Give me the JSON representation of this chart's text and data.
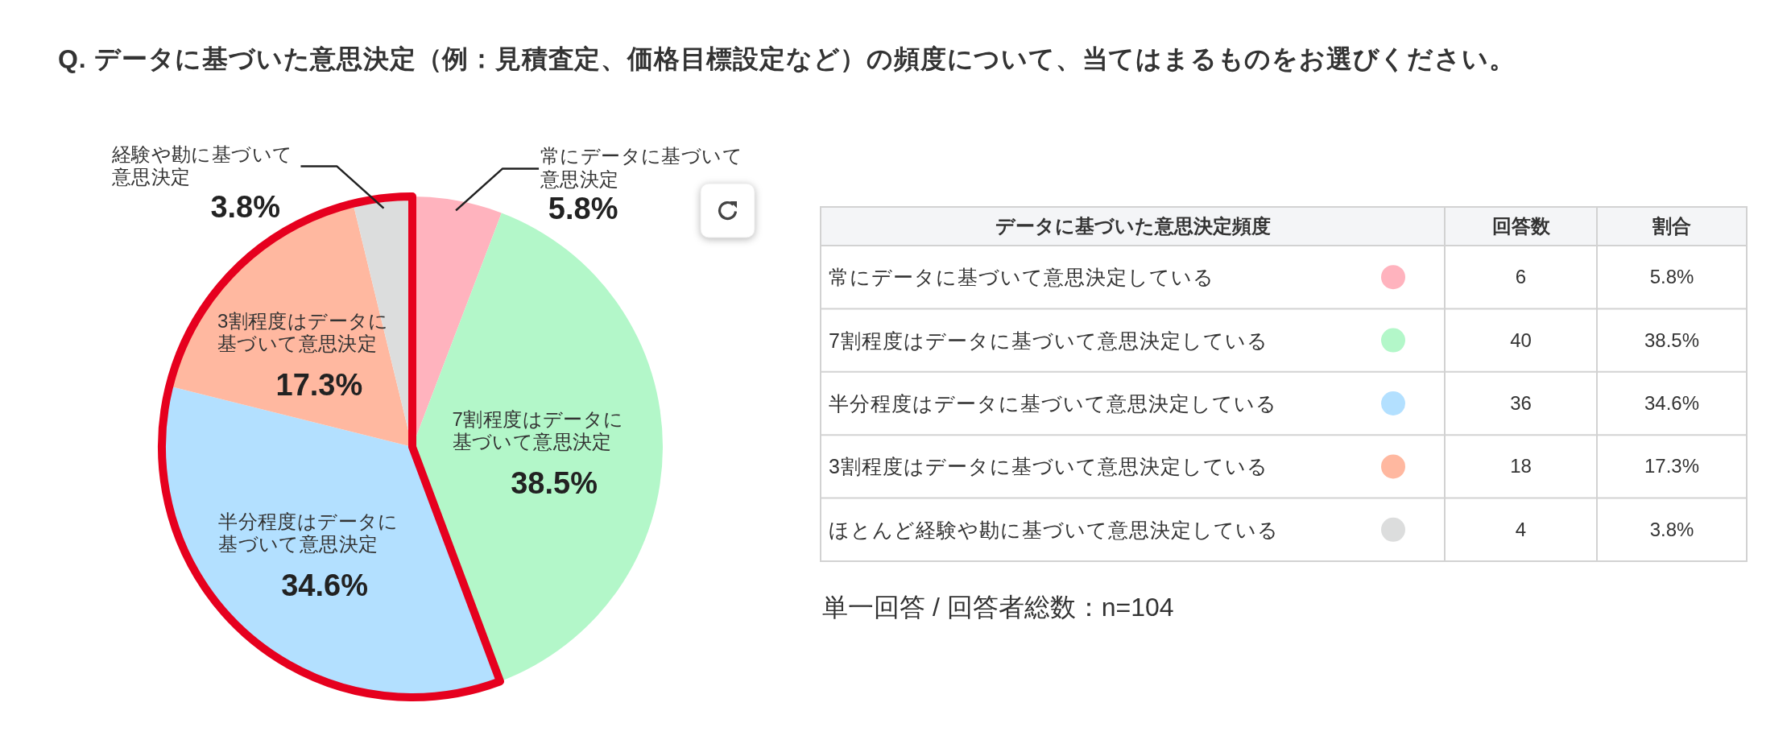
{
  "chart_data": {
    "type": "pie",
    "title": "Q. データに基づいた意思決定（例：見積査定、価格目標設定など）の頻度について、当てはまるものをお選びください。",
    "categories": [
      "常にデータに基づいて意思決定",
      "7割程度はデータに基づいて意思決定",
      "半分程度はデータに基づいて意思決定",
      "3割程度はデータに基づいて意思決定",
      "経験や勘に基づいて意思決定"
    ],
    "values": [
      5.8,
      38.5,
      34.6,
      17.3,
      3.8
    ],
    "value_labels": [
      "5.8%",
      "38.5%",
      "34.6%",
      "17.3%",
      "3.8%"
    ],
    "colors": [
      "#ffb3be",
      "#b3f7c9",
      "#b3e0ff",
      "#ffb8a0",
      "#dcdddd"
    ],
    "annotations": [
      "データに基づいた意思決定頻度",
      "回答数",
      "割合",
      "常にデータに基づいて意思決定している",
      "6",
      "7割程度はデータに基づいて意思決定している",
      "40",
      "半分程度はデータに基づいて意思決定している",
      "36",
      "3割程度はデータに基づいて意思決定している",
      "18",
      "ほとんど経験や勘に基づいて意思決定している",
      "4",
      "単一回答 / 回答者総数：n=104"
    ]
  }
}
